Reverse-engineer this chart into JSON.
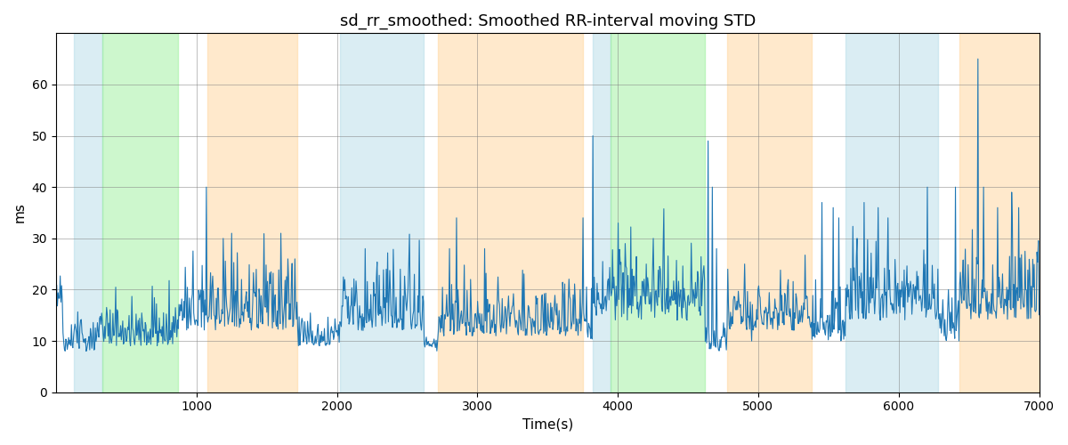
{
  "title": "sd_rr_smoothed: Smoothed RR-interval moving STD",
  "xlabel": "Time(s)",
  "ylabel": "ms",
  "xlim": [
    0,
    7000
  ],
  "ylim": [
    0,
    70
  ],
  "yticks": [
    0,
    10,
    20,
    30,
    40,
    50,
    60
  ],
  "xticks": [
    1000,
    2000,
    3000,
    4000,
    5000,
    6000,
    7000
  ],
  "line_color": "#1f77b4",
  "line_width": 0.8,
  "seed": 42,
  "colored_bands": [
    {
      "xmin": 130,
      "xmax": 330,
      "color": "#add8e6",
      "alpha": 0.45
    },
    {
      "xmin": 330,
      "xmax": 870,
      "color": "#90ee90",
      "alpha": 0.45
    },
    {
      "xmin": 1080,
      "xmax": 1720,
      "color": "#ffd59a",
      "alpha": 0.5
    },
    {
      "xmin": 2020,
      "xmax": 2620,
      "color": "#add8e6",
      "alpha": 0.45
    },
    {
      "xmin": 2720,
      "xmax": 3750,
      "color": "#ffd59a",
      "alpha": 0.5
    },
    {
      "xmin": 3820,
      "xmax": 3950,
      "color": "#add8e6",
      "alpha": 0.45
    },
    {
      "xmin": 3950,
      "xmax": 4620,
      "color": "#90ee90",
      "alpha": 0.45
    },
    {
      "xmin": 4780,
      "xmax": 5380,
      "color": "#ffd59a",
      "alpha": 0.5
    },
    {
      "xmin": 5620,
      "xmax": 6280,
      "color": "#add8e6",
      "alpha": 0.45
    },
    {
      "xmin": 6430,
      "xmax": 7000,
      "color": "#ffd59a",
      "alpha": 0.5
    }
  ],
  "n_points": 1400,
  "base_mean": 10,
  "base_std": 4
}
